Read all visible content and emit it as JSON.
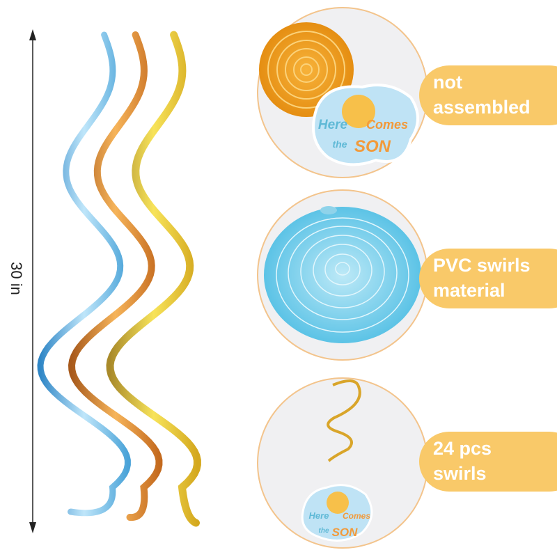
{
  "dimension": {
    "label": "30 in"
  },
  "features": [
    {
      "lines": [
        "not",
        "assembled"
      ]
    },
    {
      "lines": [
        "PVC swirls",
        "material"
      ]
    },
    {
      "lines": [
        "24 pcs",
        "swirls"
      ]
    }
  ],
  "card": {
    "words": [
      "Here",
      "Comes",
      "the",
      "SON"
    ]
  }
}
